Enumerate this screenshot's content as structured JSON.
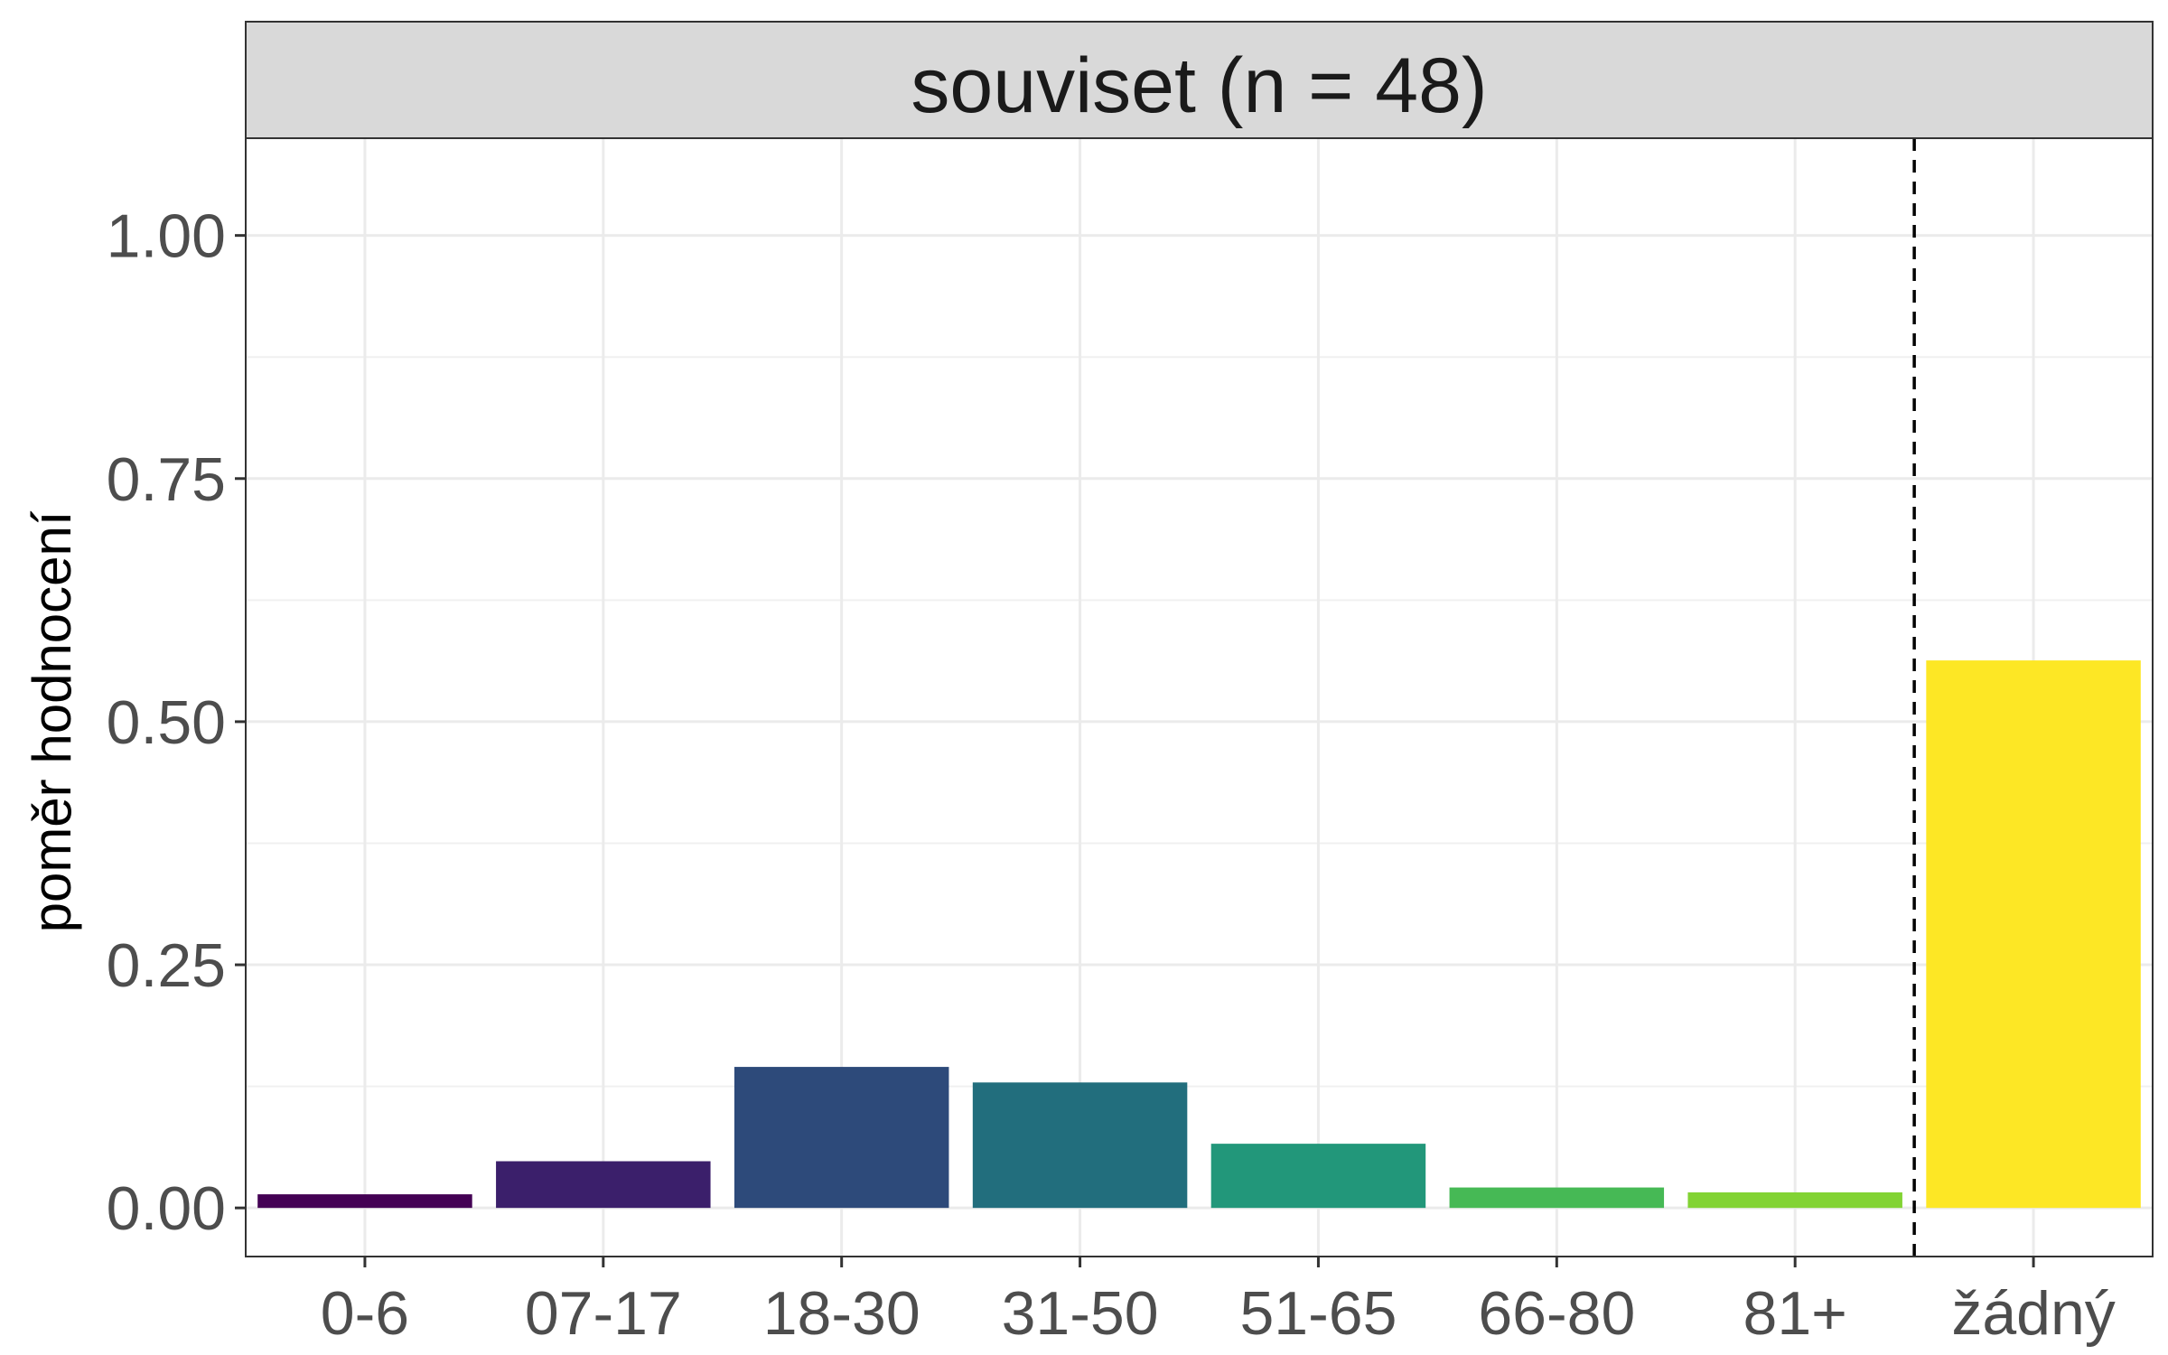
{
  "chart_data": {
    "type": "bar",
    "facet_title": "souviset (n = 48)",
    "ylabel": "poměr hodnocení",
    "xlabel": "",
    "categories": [
      "0-6",
      "07-17",
      "18-30",
      "31-50",
      "51-65",
      "66-80",
      "81+",
      "žádný"
    ],
    "values": [
      0.014,
      0.048,
      0.145,
      0.129,
      0.066,
      0.021,
      0.016,
      0.563
    ],
    "colors": [
      "#440154",
      "#3b1f6b",
      "#2d4a7a",
      "#226e7d",
      "#22977a",
      "#46b955",
      "#82d334",
      "#fde725"
    ],
    "ylim": [
      -0.05,
      1.1
    ],
    "yticks": [
      0.0,
      0.25,
      0.5,
      0.75,
      1.0
    ],
    "ytick_labels": [
      "0.00",
      "0.25",
      "0.50",
      "0.75",
      "1.00"
    ],
    "reference_line": {
      "between": [
        "81+",
        "žádný"
      ],
      "style": "dashed"
    },
    "grid": true,
    "legend": "none"
  }
}
